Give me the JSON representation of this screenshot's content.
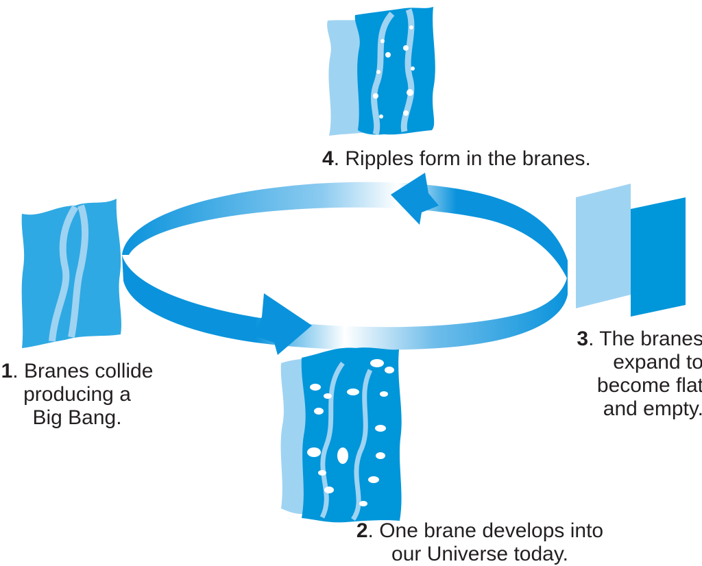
{
  "colors": {
    "brane_dark": "#0096da",
    "brane_mid": "#2fa9e3",
    "brane_light": "#9fd3f2",
    "arrow": "#0a93dc",
    "text": "#231f20"
  },
  "stages": [
    {
      "number": "1",
      "lines": [
        ". Branes collide",
        "producing a",
        "Big Bang."
      ]
    },
    {
      "number": "2",
      "lines": [
        ". One brane develops into",
        "our Universe today."
      ]
    },
    {
      "number": "3",
      "lines": [
        ". The branes",
        "expand to",
        "become flat",
        "and empty."
      ]
    },
    {
      "number": "4",
      "lines": [
        ". Ripples form in the branes."
      ]
    }
  ]
}
